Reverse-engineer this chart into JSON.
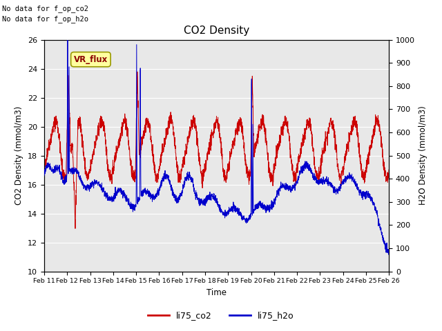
{
  "title": "CO2 Density",
  "xlabel": "Time",
  "ylabel_left": "CO2 Density (mmol/m3)",
  "ylabel_right": "H2O Density (mmol/m3)",
  "text_no_data": [
    "No data for f_op_co2",
    "No data for f_op_h2o"
  ],
  "vr_flux_label": "VR_flux",
  "legend_labels": [
    "li75_co2",
    "li75_h2o"
  ],
  "legend_colors": [
    "#cc0000",
    "#0000cc"
  ],
  "ylim_left": [
    10,
    26
  ],
  "ylim_right": [
    0,
    1000
  ],
  "yticks_left": [
    10,
    12,
    14,
    16,
    18,
    20,
    22,
    24,
    26
  ],
  "yticks_right": [
    0,
    100,
    200,
    300,
    400,
    500,
    600,
    700,
    800,
    900,
    1000
  ],
  "xtick_labels": [
    "Feb 11",
    "Feb 12",
    "Feb 13",
    "Feb 14",
    "Feb 15",
    "Feb 16",
    "Feb 17",
    "Feb 18",
    "Feb 19",
    "Feb 20",
    "Feb 21",
    "Feb 22",
    "Feb 23",
    "Feb 24",
    "Feb 25",
    "Feb 26"
  ],
  "plot_bg_color": "#e8e8e8",
  "grid_color": "#ffffff",
  "co2_color": "#cc0000",
  "h2o_color": "#0000cc",
  "linewidth": 0.7,
  "num_points": 2400,
  "seed": 42
}
